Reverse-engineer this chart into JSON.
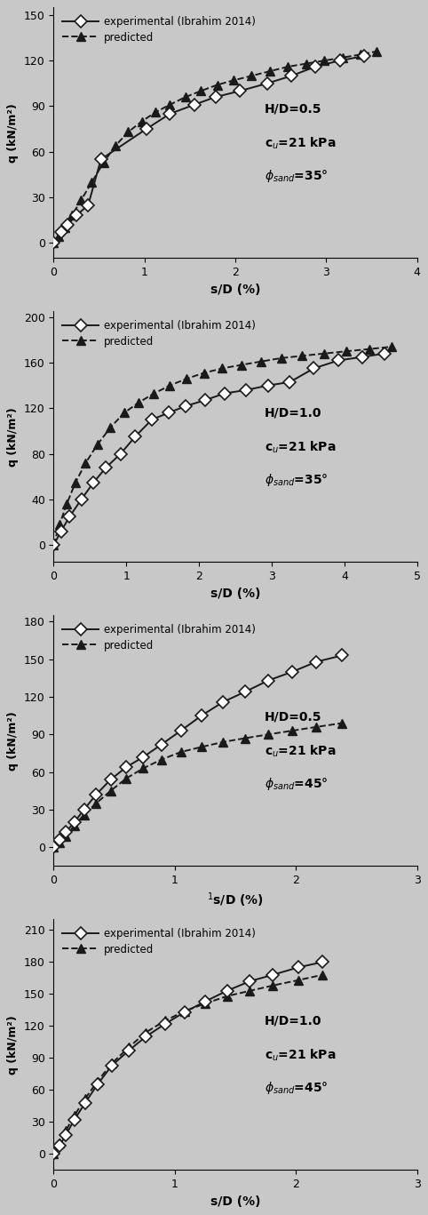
{
  "plots": [
    {
      "HD": "H/D=0.5",
      "cu": "c_u=21 kPa",
      "phi": "φ_sand=35°",
      "xlim": [
        0,
        4
      ],
      "ylim": [
        -10,
        155
      ],
      "xticks": [
        0,
        1,
        2,
        3,
        4
      ],
      "yticks": [
        0,
        30,
        60,
        90,
        120,
        150
      ],
      "ylabel": "q (kN/m²)",
      "xlabel": "s/D (%)",
      "exp_x": [
        0.0,
        0.08,
        0.15,
        0.25,
        0.38,
        0.52,
        1.02,
        1.28,
        1.55,
        1.78,
        2.05,
        2.35,
        2.62,
        2.88,
        3.15,
        3.42
      ],
      "exp_y": [
        0.0,
        7,
        12,
        18,
        25,
        55,
        75,
        85,
        91,
        96,
        100,
        105,
        110,
        116,
        120,
        123
      ],
      "pred_x": [
        0.0,
        0.05,
        0.12,
        0.2,
        0.3,
        0.42,
        0.55,
        0.68,
        0.82,
        0.97,
        1.12,
        1.28,
        1.45,
        1.62,
        1.8,
        1.98,
        2.18,
        2.38,
        2.58,
        2.78,
        2.98,
        3.18,
        3.38,
        3.55
      ],
      "pred_y": [
        0.0,
        4,
        10,
        18,
        28,
        40,
        53,
        64,
        73,
        80,
        86,
        91,
        96,
        100,
        104,
        107,
        110,
        113,
        116,
        118,
        120,
        122,
        124,
        126
      ]
    },
    {
      "HD": "H/D=1.0",
      "cu": "c_u=21 kPa",
      "phi": "φ_sand=35°",
      "xlim": [
        0,
        5
      ],
      "ylim": [
        -15,
        205
      ],
      "xticks": [
        0,
        1,
        2,
        3,
        4,
        5
      ],
      "yticks": [
        0,
        40,
        80,
        120,
        160,
        200
      ],
      "ylabel": "q (kN/m²)",
      "xlabel": "s/D (%)",
      "exp_x": [
        0.0,
        0.1,
        0.22,
        0.38,
        0.55,
        0.72,
        0.92,
        1.12,
        1.35,
        1.58,
        1.82,
        2.08,
        2.35,
        2.65,
        2.95,
        3.25,
        3.58,
        3.92,
        4.25,
        4.55
      ],
      "exp_y": [
        0.0,
        12,
        25,
        40,
        55,
        68,
        80,
        95,
        110,
        116,
        122,
        127,
        133,
        136,
        140,
        143,
        155,
        162,
        165,
        168
      ],
      "pred_x": [
        0.0,
        0.08,
        0.18,
        0.3,
        0.44,
        0.6,
        0.78,
        0.97,
        1.17,
        1.38,
        1.6,
        1.83,
        2.07,
        2.32,
        2.58,
        2.85,
        3.13,
        3.42,
        3.72,
        4.03,
        4.35,
        4.65
      ],
      "pred_y": [
        0.0,
        18,
        36,
        55,
        72,
        88,
        103,
        116,
        125,
        133,
        140,
        146,
        151,
        155,
        158,
        161,
        164,
        166,
        168,
        170,
        172,
        174
      ]
    },
    {
      "HD": "H/D=0.5",
      "cu": "c_u=21 kPa",
      "phi": "φ_sand=45°",
      "xlim": [
        0,
        3
      ],
      "ylim": [
        -15,
        185
      ],
      "xticks": [
        0,
        1,
        2,
        3
      ],
      "yticks": [
        0,
        30,
        60,
        90,
        120,
        150,
        180
      ],
      "ylabel": "q (kN/m²)",
      "xlabel": "s/D (%)",
      "xlabel_special": true,
      "exp_x": [
        0.0,
        0.05,
        0.1,
        0.17,
        0.25,
        0.35,
        0.47,
        0.6,
        0.74,
        0.89,
        1.05,
        1.22,
        1.4,
        1.58,
        1.77,
        1.97,
        2.17,
        2.38
      ],
      "exp_y": [
        0.0,
        6,
        12,
        20,
        30,
        42,
        54,
        64,
        72,
        82,
        93,
        105,
        116,
        124,
        133,
        140,
        148,
        153
      ],
      "pred_x": [
        0.0,
        0.05,
        0.1,
        0.17,
        0.25,
        0.35,
        0.47,
        0.6,
        0.74,
        0.89,
        1.05,
        1.22,
        1.4,
        1.58,
        1.77,
        1.97,
        2.17,
        2.38
      ],
      "pred_y": [
        0.0,
        4,
        9,
        17,
        26,
        35,
        45,
        55,
        63,
        70,
        76,
        80,
        84,
        87,
        90,
        93,
        96,
        99
      ]
    },
    {
      "HD": "H/D=1.0",
      "cu": "c_u=21 kPa",
      "phi": "φ_sand=45°",
      "xlim": [
        0,
        3
      ],
      "ylim": [
        -15,
        220
      ],
      "xticks": [
        0,
        1,
        2,
        3
      ],
      "yticks": [
        0,
        30,
        60,
        90,
        120,
        150,
        180,
        210
      ],
      "ylabel": "q (kN/m²)",
      "xlabel": "s/D (%)",
      "exp_x": [
        0.0,
        0.05,
        0.1,
        0.17,
        0.26,
        0.36,
        0.48,
        0.62,
        0.76,
        0.92,
        1.08,
        1.25,
        1.43,
        1.62,
        1.81,
        2.02,
        2.22
      ],
      "exp_y": [
        0.0,
        8,
        18,
        32,
        48,
        65,
        83,
        97,
        110,
        122,
        133,
        143,
        153,
        162,
        168,
        175,
        180
      ],
      "pred_x": [
        0.0,
        0.05,
        0.1,
        0.17,
        0.26,
        0.36,
        0.48,
        0.62,
        0.76,
        0.92,
        1.08,
        1.25,
        1.43,
        1.62,
        1.81,
        2.02,
        2.22
      ],
      "pred_y": [
        0.0,
        10,
        22,
        36,
        52,
        68,
        85,
        100,
        114,
        125,
        134,
        141,
        148,
        153,
        158,
        163,
        168
      ]
    }
  ],
  "line_color": "#1a1a1a",
  "exp_marker": "D",
  "pred_marker": "^",
  "exp_markersize": 7,
  "pred_markersize": 7,
  "exp_label": "experimental (Ibrahim 2014)",
  "pred_label": "predicted",
  "linewidth": 1.4,
  "background_color": "#c8c8c8"
}
